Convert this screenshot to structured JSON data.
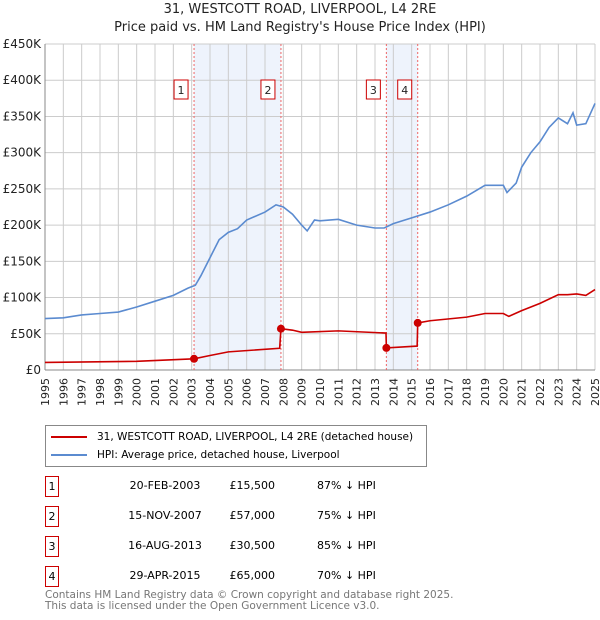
{
  "title": "31, WESTCOTT ROAD, LIVERPOOL, L4 2RE",
  "subtitle": "Price paid vs. HM Land Registry's House Price Index (HPI)",
  "chart_data": {
    "type": "line",
    "title": "31, WESTCOTT ROAD, LIVERPOOL, L4 2RE",
    "subtitle": "Price paid vs. HM Land Registry's House Price Index (HPI)",
    "xlim": [
      1995,
      2025
    ],
    "ylim": [
      0,
      450000
    ],
    "x_ticks": [
      "1995",
      "1996",
      "1997",
      "1998",
      "1999",
      "2000",
      "2001",
      "2002",
      "2003",
      "2004",
      "2005",
      "2006",
      "2007",
      "2008",
      "2009",
      "2010",
      "2011",
      "2012",
      "2013",
      "2014",
      "2015",
      "2016",
      "2017",
      "2018",
      "2019",
      "2020",
      "2021",
      "2022",
      "2023",
      "2024",
      "2025"
    ],
    "y_ticks": [
      {
        "v": 0,
        "label": "£0"
      },
      {
        "v": 50000,
        "label": "£50K"
      },
      {
        "v": 100000,
        "label": "£100K"
      },
      {
        "v": 150000,
        "label": "£150K"
      },
      {
        "v": 200000,
        "label": "£200K"
      },
      {
        "v": 250000,
        "label": "£250K"
      },
      {
        "v": 300000,
        "label": "£300K"
      },
      {
        "v": 350000,
        "label": "£350K"
      },
      {
        "v": 400000,
        "label": "£400K"
      },
      {
        "v": 450000,
        "label": "£450K"
      }
    ],
    "grid": true,
    "series": [
      {
        "name": "31, WESTCOTT ROAD, LIVERPOOL, L4 2RE (detached house)",
        "color": "#cc0000",
        "x": [
          1995,
          2000,
          2003.13,
          2004,
          2005,
          2007.8,
          2007.87,
          2008.5,
          2009,
          2011,
          2013.6,
          2013.62,
          2015.3,
          2015.33,
          2016,
          2018,
          2019,
          2020,
          2020.3,
          2021,
          2022,
          2023,
          2023.5,
          2024,
          2024.5,
          2025
        ],
        "y": [
          10500,
          12000,
          15500,
          20000,
          25000,
          30000,
          57000,
          55000,
          52000,
          54000,
          51000,
          30500,
          33000,
          65000,
          68000,
          73000,
          78000,
          78000,
          74000,
          82000,
          92000,
          104000,
          104000,
          105000,
          103000,
          111000
        ]
      },
      {
        "name": "HPI: Average price, detached house, Liverpool",
        "color": "#5b8bd0",
        "x": [
          1995,
          1996,
          1997,
          1998,
          1999,
          2000,
          2001,
          2002,
          2002.8,
          2003.2,
          2003.5,
          2004,
          2004.5,
          2005,
          2005.5,
          2006,
          2007,
          2007.6,
          2008,
          2008.5,
          2009,
          2009.3,
          2009.7,
          2010,
          2011,
          2012,
          2013,
          2013.5,
          2014,
          2015,
          2016,
          2017,
          2018,
          2019,
          2020,
          2020.2,
          2020.7,
          2021,
          2021.5,
          2022,
          2022.5,
          2023,
          2023.5,
          2023.8,
          2024,
          2024.5,
          2025
        ],
        "y": [
          71000,
          72000,
          76000,
          78000,
          80000,
          87000,
          95000,
          103000,
          113000,
          117000,
          130000,
          155000,
          180000,
          190000,
          195000,
          207000,
          218000,
          228000,
          225000,
          215000,
          200000,
          192000,
          207000,
          206000,
          208000,
          200000,
          196000,
          196000,
          202000,
          210000,
          218000,
          228000,
          240000,
          255000,
          255000,
          245000,
          258000,
          280000,
          300000,
          315000,
          335000,
          348000,
          340000,
          355000,
          338000,
          340000,
          368000
        ]
      }
    ],
    "sales": [
      {
        "n": "1",
        "x": 2003.13,
        "y": 15500
      },
      {
        "n": "2",
        "x": 2007.87,
        "y": 57000
      },
      {
        "n": "3",
        "x": 2013.62,
        "y": 30500
      },
      {
        "n": "4",
        "x": 2015.33,
        "y": 65000
      }
    ],
    "shaded": [
      [
        2003.13,
        2007.87
      ],
      [
        2013.62,
        2015.33
      ]
    ]
  },
  "legend": {
    "property": "31, WESTCOTT ROAD, LIVERPOOL, L4 2RE (detached house)",
    "hpi": "HPI: Average price, detached house, Liverpool"
  },
  "table": [
    {
      "n": "1",
      "date": "20-FEB-2003",
      "price": "£15,500",
      "hpi": "87% ↓ HPI"
    },
    {
      "n": "2",
      "date": "15-NOV-2007",
      "price": "£57,000",
      "hpi": "75% ↓ HPI"
    },
    {
      "n": "3",
      "date": "16-AUG-2013",
      "price": "£30,500",
      "hpi": "85% ↓ HPI"
    },
    {
      "n": "4",
      "date": "29-APR-2015",
      "price": "£65,000",
      "hpi": "70% ↓ HPI"
    }
  ],
  "footer": {
    "line1": "Contains HM Land Registry data © Crown copyright and database right 2025.",
    "line2": "This data is licensed under the Open Government Licence v3.0."
  }
}
